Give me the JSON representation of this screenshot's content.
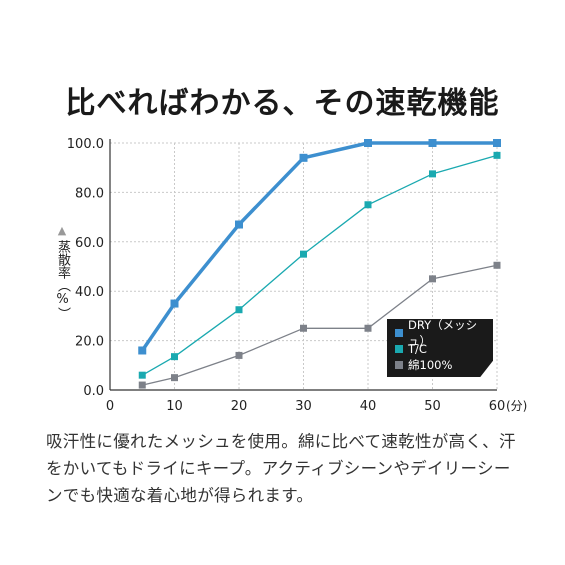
{
  "title": "比べればわかる、その速乾機能",
  "y_axis_label": "蒸散率（%）",
  "x_unit_label": "(分)",
  "description": "吸汗性に優れたメッシュを使用。綿に比べて速乾性が高く、汗をかいてもドライにキープ。アクティブシーンやデイリーシーンでも快適な着心地が得られます。",
  "colors": {
    "dry": "#3d8fcf",
    "tc": "#1aa9b0",
    "cotton": "#7d8189",
    "grid": "#c9c9c9"
  },
  "chart_data": {
    "type": "line",
    "xlabel": "(分)",
    "ylabel": "蒸散率（%）",
    "xlim": [
      0,
      60
    ],
    "ylim": [
      0,
      100
    ],
    "x_ticks": [
      0,
      10,
      20,
      30,
      40,
      50,
      60
    ],
    "x_tick_labels": [
      "0",
      "10",
      "20",
      "30",
      "40",
      "50",
      "60"
    ],
    "y_ticks": [
      0,
      20,
      40,
      60,
      80,
      100
    ],
    "y_tick_labels": [
      "0.0",
      "20.0",
      "40.0",
      "60.0",
      "80.0",
      "100.0"
    ],
    "grid": true,
    "legend_position": "bottom-right",
    "x": [
      5,
      10,
      20,
      30,
      40,
      50,
      60
    ],
    "series": [
      {
        "name": "DRY（メッシュ）",
        "key": "dry",
        "values": [
          16,
          35,
          67,
          94,
          100,
          100,
          100
        ]
      },
      {
        "name": "T/C",
        "key": "tc",
        "values": [
          6,
          13.5,
          32.5,
          55,
          75,
          87.5,
          95
        ]
      },
      {
        "name": "綿100%",
        "key": "cotton",
        "values": [
          2,
          5,
          14,
          25,
          25,
          45,
          50.5
        ]
      }
    ]
  }
}
